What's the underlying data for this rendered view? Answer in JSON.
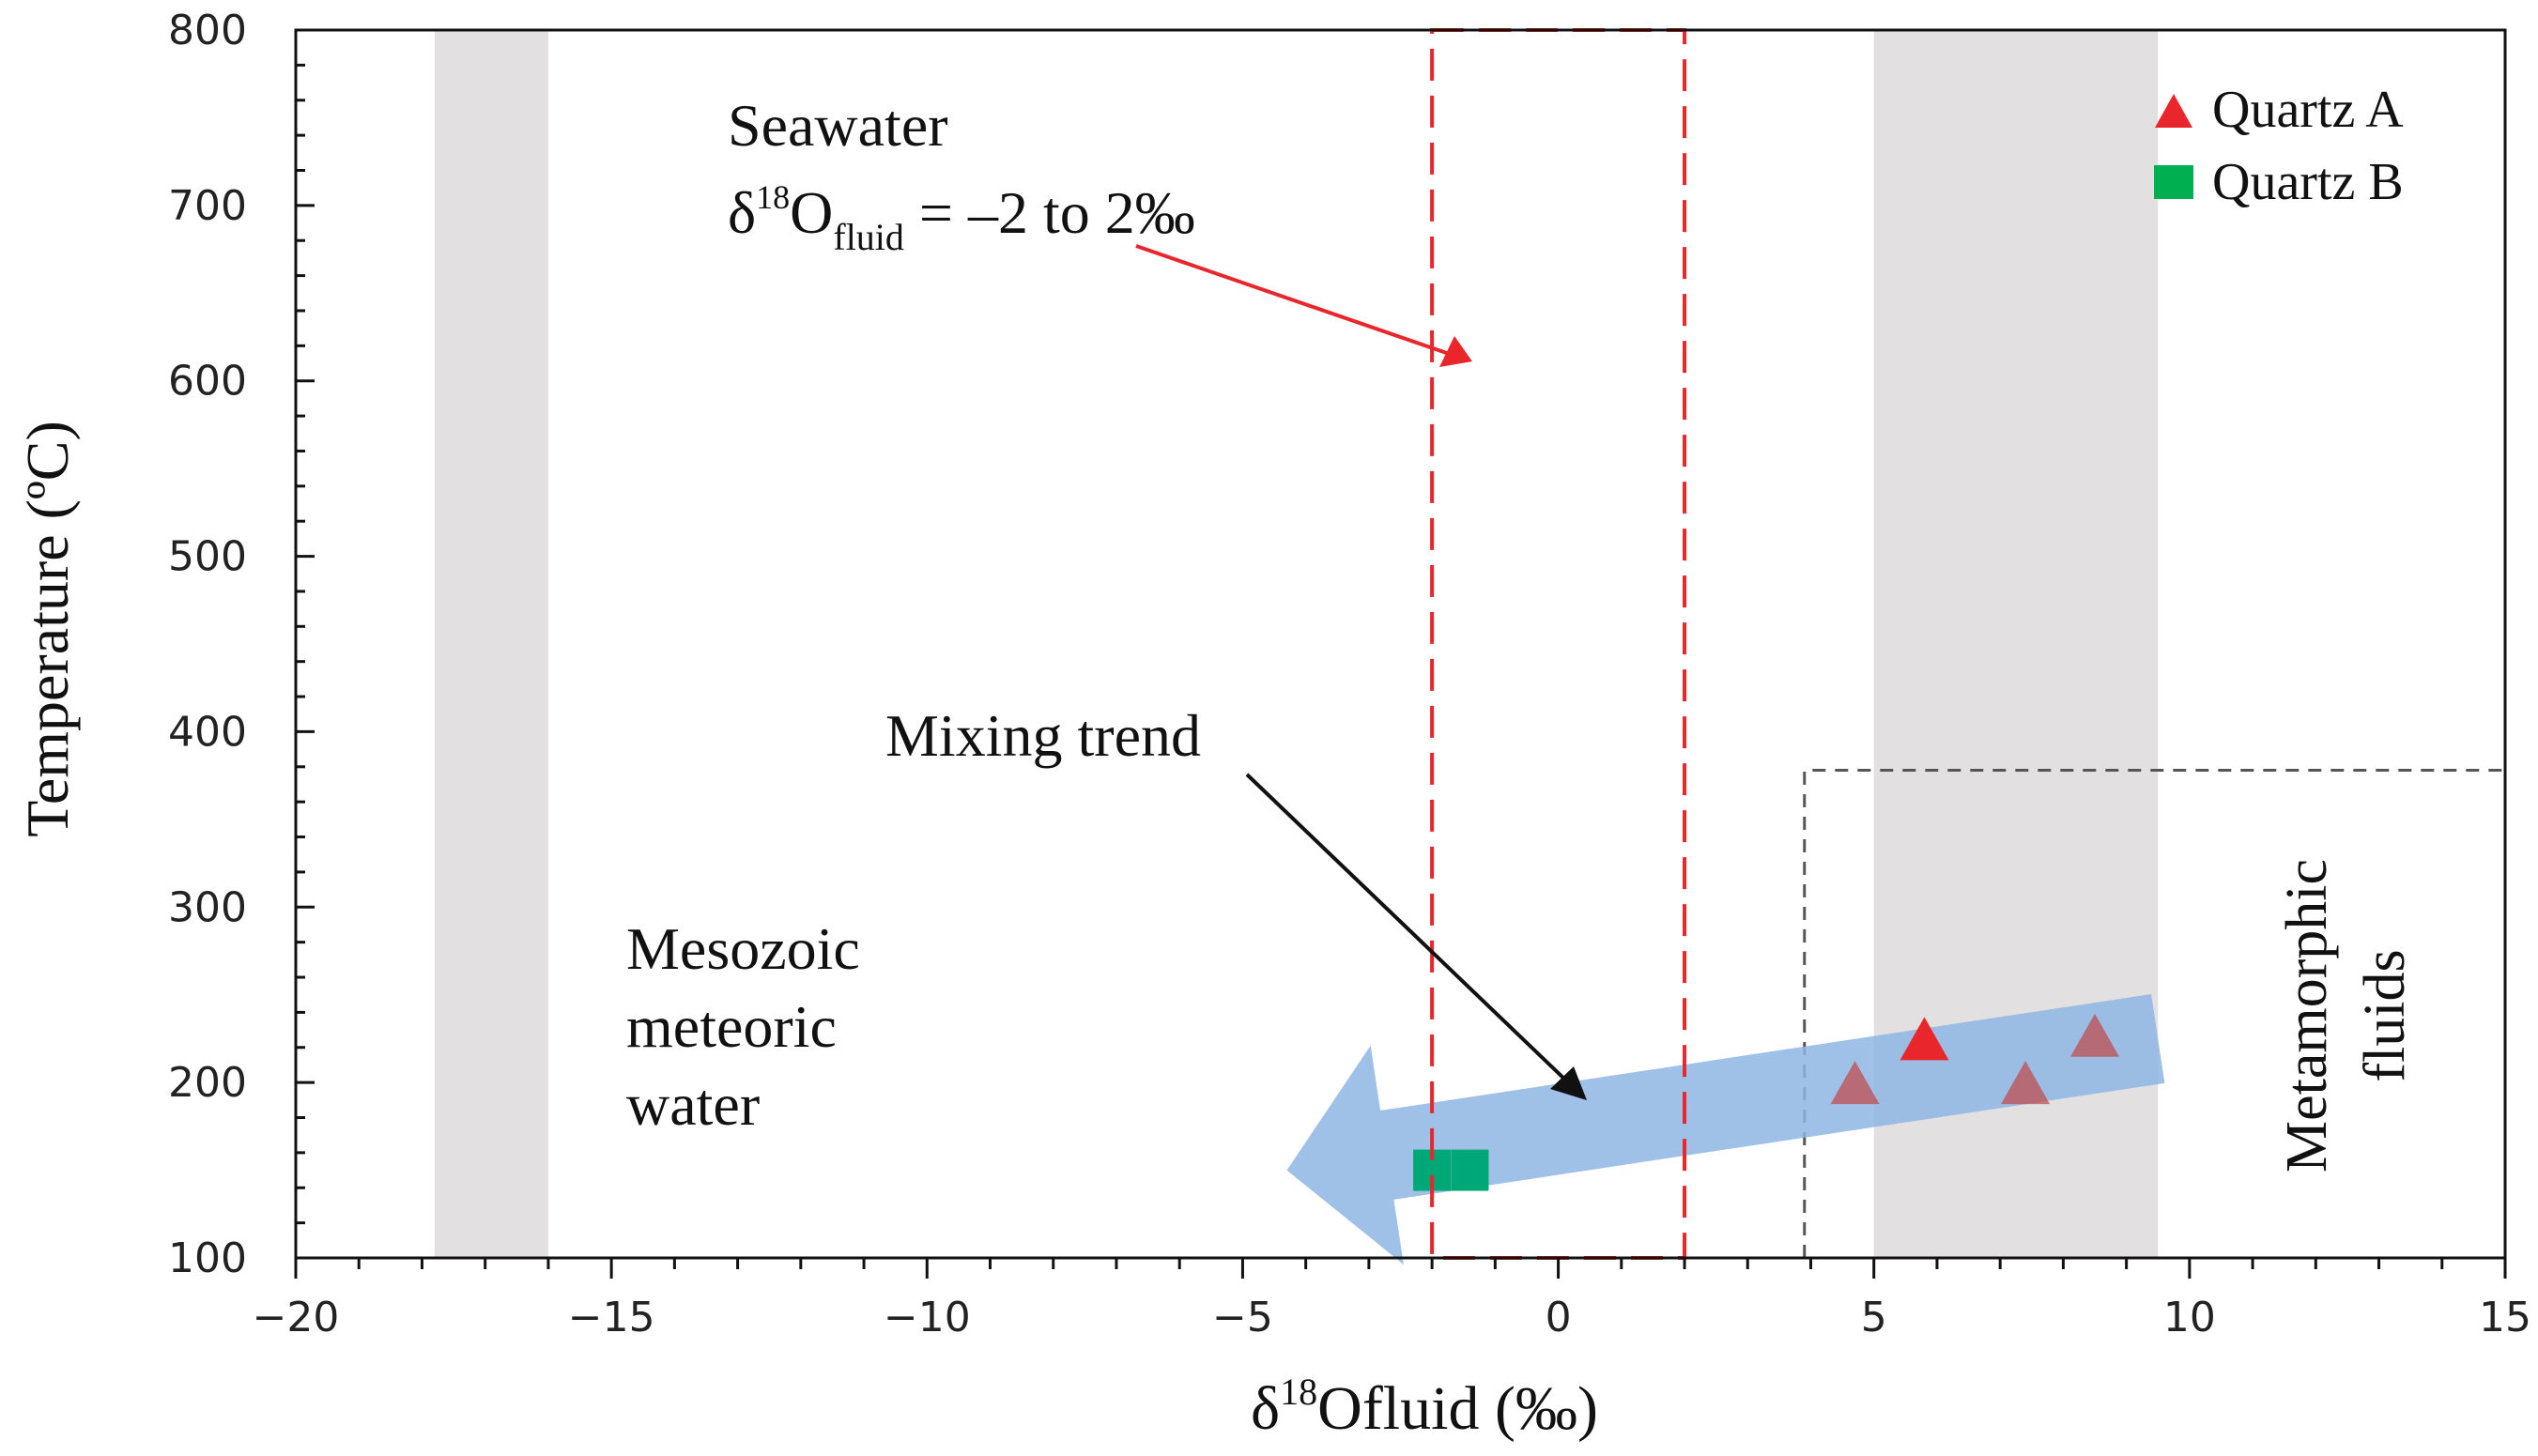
{
  "chart_data": {
    "type": "scatter",
    "xlabel_prefix": "δ",
    "xlabel_sup": "18",
    "xlabel_rest": "Ofluid (‰)",
    "ylabel": "Temperature (ºC)",
    "xlim": [
      -20,
      15
    ],
    "ylim": [
      100,
      800
    ],
    "x_ticks": [
      -20,
      -15,
      -10,
      -5,
      0,
      5,
      10,
      15
    ],
    "x_tick_labels": [
      "−20",
      "−15",
      "−10",
      "−5",
      "0",
      "5",
      "10",
      "15"
    ],
    "y_ticks": [
      100,
      200,
      300,
      400,
      500,
      600,
      700,
      800
    ],
    "y_tick_labels": [
      "100",
      "200",
      "300",
      "400",
      "500",
      "600",
      "700",
      "800"
    ],
    "grid": false,
    "legend_position": "top-right",
    "series": [
      {
        "name": "Quartz A",
        "marker": "triangle",
        "color": "#e8262b",
        "points": [
          {
            "x": 5.8,
            "y": 225,
            "faded": false
          },
          {
            "x": 4.7,
            "y": 200,
            "faded": true
          },
          {
            "x": 7.4,
            "y": 200,
            "faded": true
          },
          {
            "x": 8.5,
            "y": 227,
            "faded": true
          }
        ]
      },
      {
        "name": "Quartz B",
        "marker": "square",
        "color": "#00a878",
        "points": [
          {
            "x": -2.0,
            "y": 150,
            "faded": false
          },
          {
            "x": -1.4,
            "y": 150,
            "faded": false
          }
        ]
      }
    ],
    "regions": [
      {
        "name": "meteoric-band",
        "x_range": [
          -17.8,
          -16.0
        ],
        "color": "#e2e0e0"
      },
      {
        "name": "metamorphic-band",
        "x_range": [
          5.0,
          9.5
        ],
        "color": "#e2e0e0"
      },
      {
        "name": "seawater-box",
        "x_range": [
          -2,
          2
        ],
        "y_range": [
          100,
          800
        ],
        "color": "#e8262b"
      },
      {
        "name": "metamorphic-box",
        "x_range": [
          3.9,
          15
        ],
        "y_range": [
          100,
          378
        ],
        "color": "#555555"
      }
    ],
    "mixing_arrow": {
      "from": {
        "x": 9.5,
        "y": 225
      },
      "to": {
        "x": -4.3,
        "y": 150
      },
      "color": "#8fb6e3"
    },
    "annotations": {
      "seawater_title": "Seawater",
      "seawater_delta": "δ",
      "seawater_sup": "18",
      "seawater_o": "O",
      "seawater_sub": "fluid",
      "seawater_range": " = –2 to 2‰",
      "seawater_arrow_color": "#e8262b",
      "mixing": "Mixing trend",
      "meteoric_line1": "Mesozoic",
      "meteoric_line2": "meteoric",
      "meteoric_line3": "water",
      "metamorphic_line1": "Metamorphic",
      "metamorphic_line2": "fluids"
    }
  }
}
